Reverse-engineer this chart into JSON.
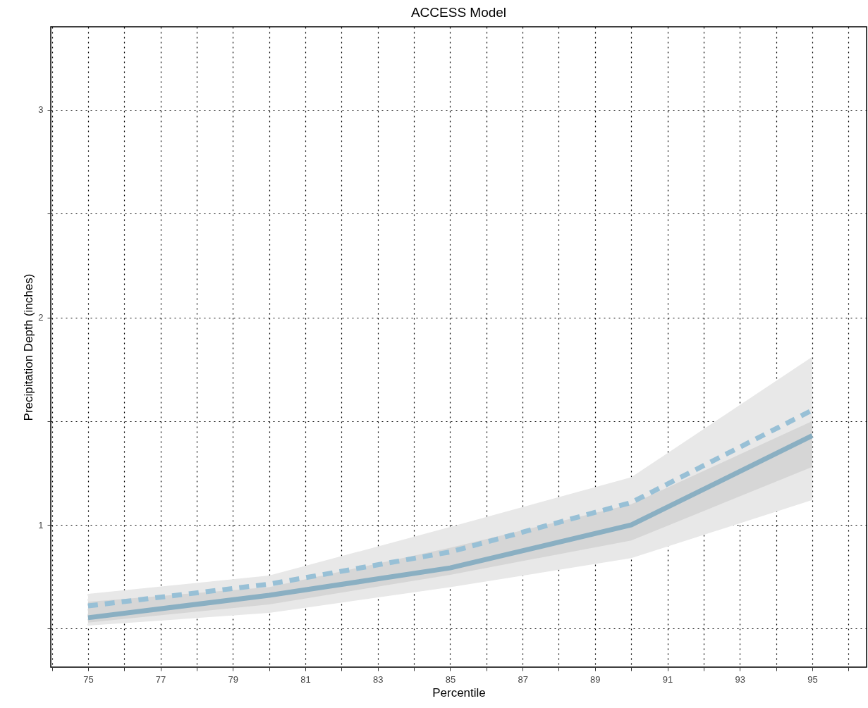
{
  "chart_data": {
    "type": "line",
    "title": "ACCESS Model",
    "xlabel": "Percentile",
    "ylabel": "Precipitation Depth (inches)",
    "x": [
      75,
      80,
      85,
      90,
      95
    ],
    "series": [
      {
        "color": "#8aafc2",
        "line_style": "solid",
        "values": [
          0.553,
          0.661,
          0.793,
          1.0,
          1.43
        ],
        "lower": [
          0.53,
          0.617,
          0.76,
          0.925,
          1.28
        ],
        "upper": [
          0.63,
          0.7,
          0.89,
          1.1,
          1.5
        ]
      },
      {
        "color": "#98c0d6",
        "line_style": "dashed",
        "values": [
          0.61,
          0.715,
          0.87,
          1.108,
          1.553
        ],
        "lower": [
          0.515,
          0.576,
          0.7,
          0.84,
          1.12
        ],
        "upper": [
          0.668,
          0.756,
          0.99,
          1.23,
          1.81
        ]
      }
    ],
    "xlim": [
      73.97,
      96.5
    ],
    "ylim": [
      0.315,
      3.4
    ],
    "xticks": [
      {
        "value": 74,
        "label": null
      },
      75,
      {
        "value": 76,
        "label": null
      },
      77,
      {
        "value": 78,
        "label": null
      },
      79,
      {
        "value": 80,
        "label": null
      },
      81,
      {
        "value": 82,
        "label": null
      },
      83,
      {
        "value": 84,
        "label": null
      },
      85,
      {
        "value": 86,
        "label": null
      },
      87,
      {
        "value": 88,
        "label": null
      },
      89,
      {
        "value": 90,
        "label": null
      },
      91,
      {
        "value": 92,
        "label": null
      },
      93,
      {
        "value": 94,
        "label": null
      },
      95,
      {
        "value": 96,
        "label": null
      }
    ],
    "yticks": [
      {
        "value": 0.5,
        "label": null
      },
      1,
      {
        "value": 1.5,
        "label": null
      },
      2,
      {
        "value": 2.5,
        "label": null
      },
      3
    ],
    "grid": true,
    "marker": "none"
  }
}
